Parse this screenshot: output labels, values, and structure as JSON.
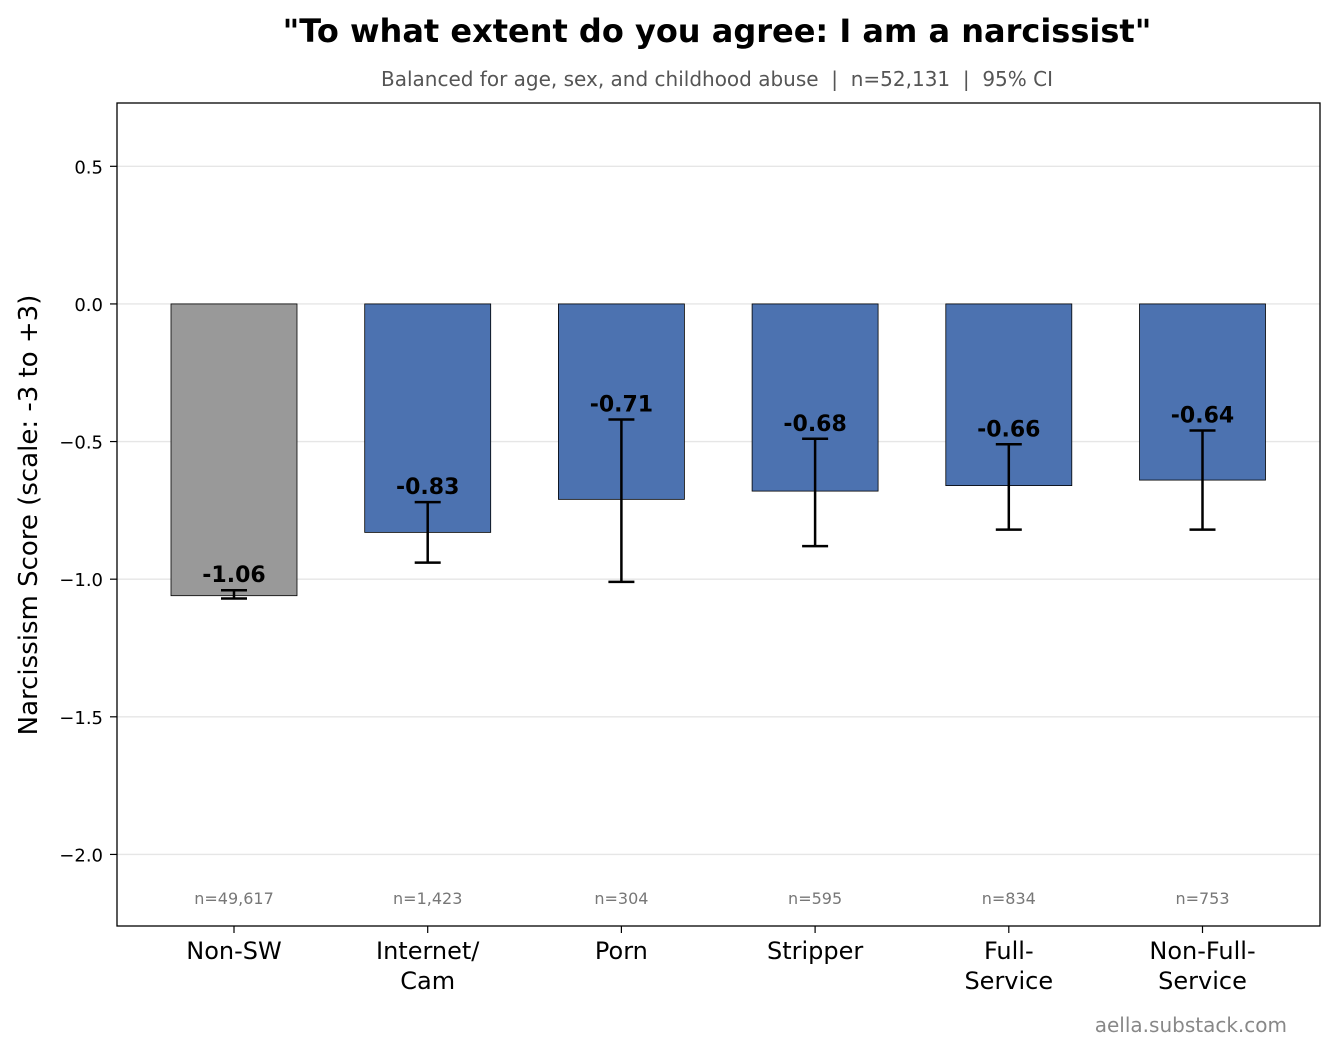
{
  "chart_data": {
    "type": "bar",
    "title": "\"To what extent do you agree: I am a narcissist\"",
    "subtitle": "Balanced for age, sex, and childhood abuse  |  n=52,131  |  95% CI",
    "xlabel": "",
    "ylabel": "Narcissism Score (scale: -3 to +3)",
    "ylim": [
      -2.26,
      0.73
    ],
    "yticks": [
      0.5,
      0.0,
      -0.5,
      -1.0,
      -1.5,
      -2.0
    ],
    "ytick_labels": [
      "0.5",
      "0.0",
      "−0.5",
      "−1.0",
      "−1.5",
      "−2.0"
    ],
    "grid": true,
    "categories": [
      "Non-SW",
      "Internet/\nCam",
      "Porn",
      "Stripper",
      "Full-\nService",
      "Non-Full-\nService"
    ],
    "values": [
      -1.06,
      -0.83,
      -0.71,
      -0.68,
      -0.66,
      -0.64
    ],
    "value_labels": [
      "-1.06",
      "-0.83",
      "-0.71",
      "-0.68",
      "-0.66",
      "-0.64"
    ],
    "ci_lower": [
      -1.07,
      -0.94,
      -1.01,
      -0.88,
      -0.82,
      -0.82
    ],
    "ci_upper": [
      -1.04,
      -0.72,
      -0.42,
      -0.49,
      -0.51,
      -0.46
    ],
    "n_labels": [
      "n=49,617",
      "n=1,423",
      "n=304",
      "n=595",
      "n=834",
      "n=753"
    ],
    "colors": [
      "#999999",
      "#4c72b0",
      "#4c72b0",
      "#4c72b0",
      "#4c72b0",
      "#4c72b0"
    ]
  },
  "footer": "aella.substack.com"
}
